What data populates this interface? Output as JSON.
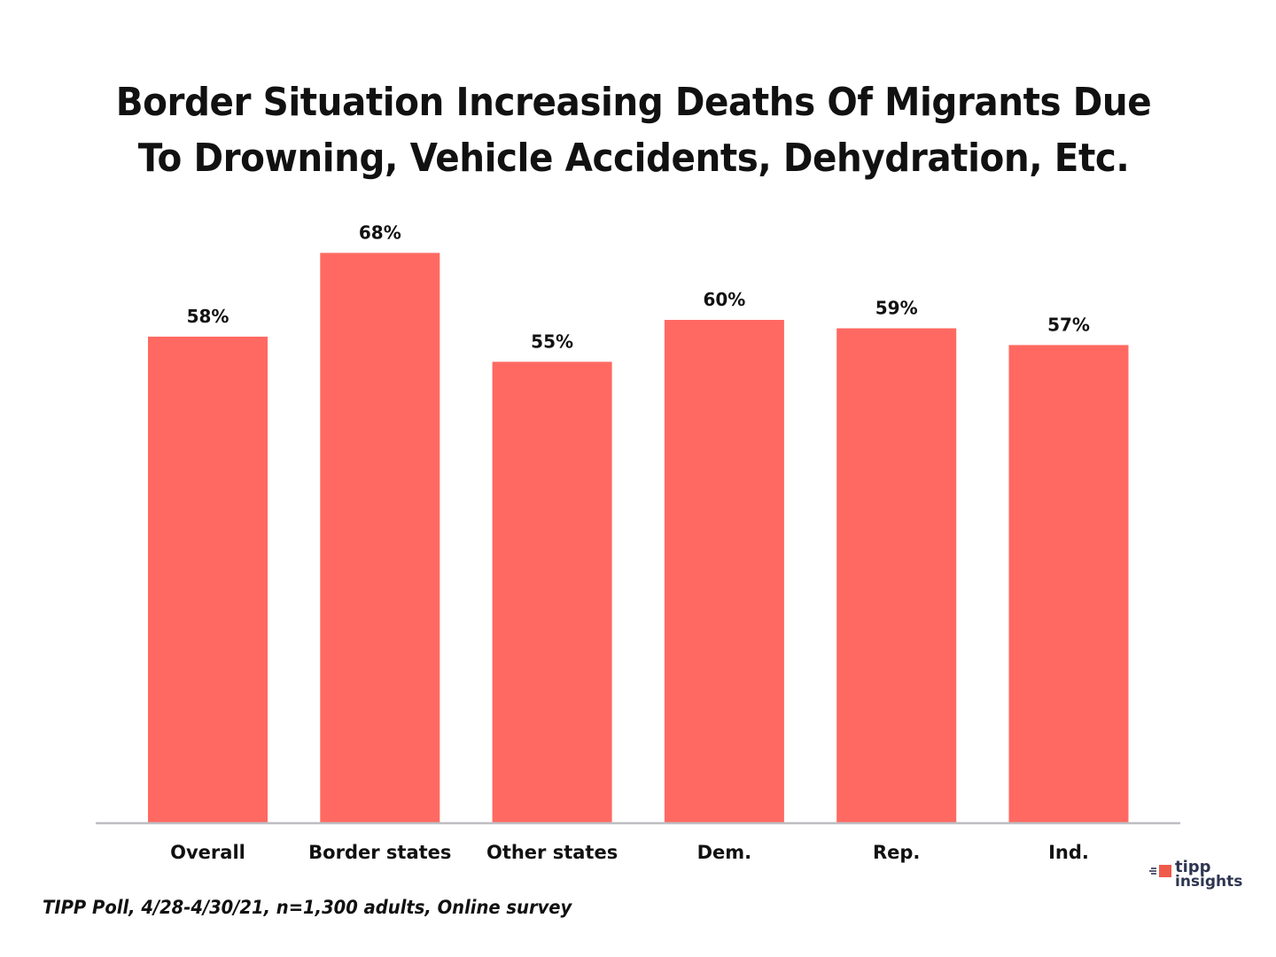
{
  "chart_data": {
    "type": "bar",
    "title": "Border Situation Increasing Deaths Of Migrants Due To Drowning, Vehicle Accidents, Dehydration, Etc.",
    "title_lines": [
      "Border Situation Increasing Deaths Of Migrants Due",
      "To Drowning, Vehicle Accidents, Dehydration, Etc."
    ],
    "categories": [
      "Overall",
      "Border states",
      "Other states",
      "Dem.",
      "Rep.",
      "Ind."
    ],
    "values": [
      58,
      68,
      55,
      60,
      59,
      57
    ],
    "data_labels": [
      "58%",
      "68%",
      "55%",
      "60%",
      "59%",
      "57%"
    ],
    "xlabel": "",
    "ylabel": "",
    "ylim": [
      0,
      100
    ],
    "unit": "%",
    "grid": false,
    "legend": null,
    "bar_color": "#ff6961",
    "axis_color": "#bdbdc2"
  },
  "footer": {
    "source": "TIPP Poll, 4/28-4/30/21, n=1,300 adults, Online survey"
  },
  "logo": {
    "line1": "tipp",
    "line2": "insights",
    "text_color": "#2e3550",
    "accent_color": "#f05a4a"
  }
}
